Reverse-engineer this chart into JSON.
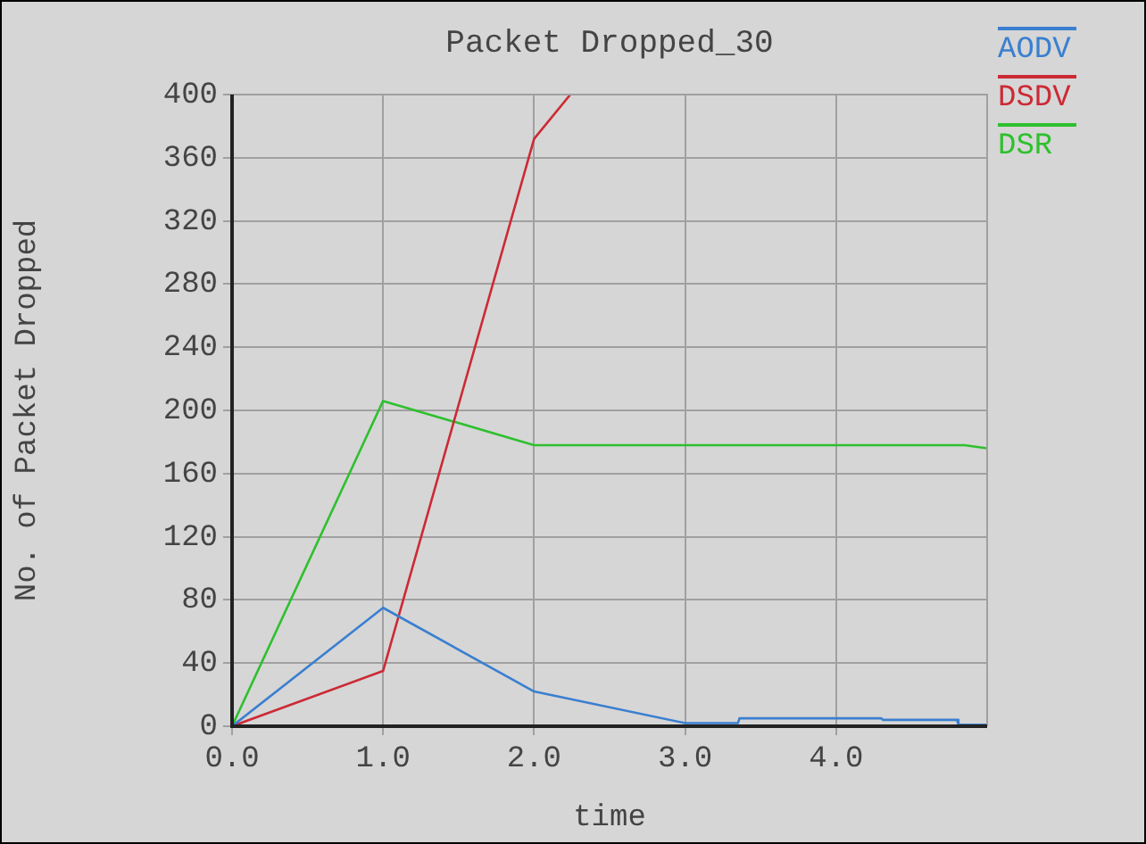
{
  "chart_data": {
    "type": "line",
    "title": "Packet Dropped_30",
    "xlabel": "time",
    "ylabel": "No. of Packet Dropped",
    "xlim": [
      0,
      5
    ],
    "xticks": [
      {
        "value": 0,
        "label": "0.0"
      },
      {
        "value": 1,
        "label": "1.0"
      },
      {
        "value": 2,
        "label": "2.0"
      },
      {
        "value": 3,
        "label": "3.0"
      },
      {
        "value": 4,
        "label": "4.0"
      }
    ],
    "ylim": [
      0,
      400
    ],
    "yticks": [
      0,
      40,
      80,
      120,
      160,
      200,
      240,
      280,
      320,
      360,
      400
    ],
    "grid": true,
    "legend": "top right",
    "marker": "none",
    "line_style": "solid",
    "series": [
      {
        "name": "AODV",
        "color": "#3a7fd0",
        "x": [
          0,
          1,
          2,
          3,
          3.35,
          3.36,
          4.3,
          4.31,
          4.8,
          4.81,
          5
        ],
        "values": [
          0,
          75,
          22,
          2,
          2,
          5,
          5,
          4,
          4,
          1,
          1
        ]
      },
      {
        "name": "DSDV",
        "color": "#cc2a35",
        "x": [
          0,
          1,
          2,
          2.24
        ],
        "values": [
          0,
          35,
          372,
          400
        ]
      },
      {
        "name": "DSR",
        "color": "#2ec02e",
        "x": [
          0,
          1,
          2,
          4.85,
          5
        ],
        "values": [
          0,
          206,
          178,
          178,
          176
        ]
      }
    ]
  }
}
